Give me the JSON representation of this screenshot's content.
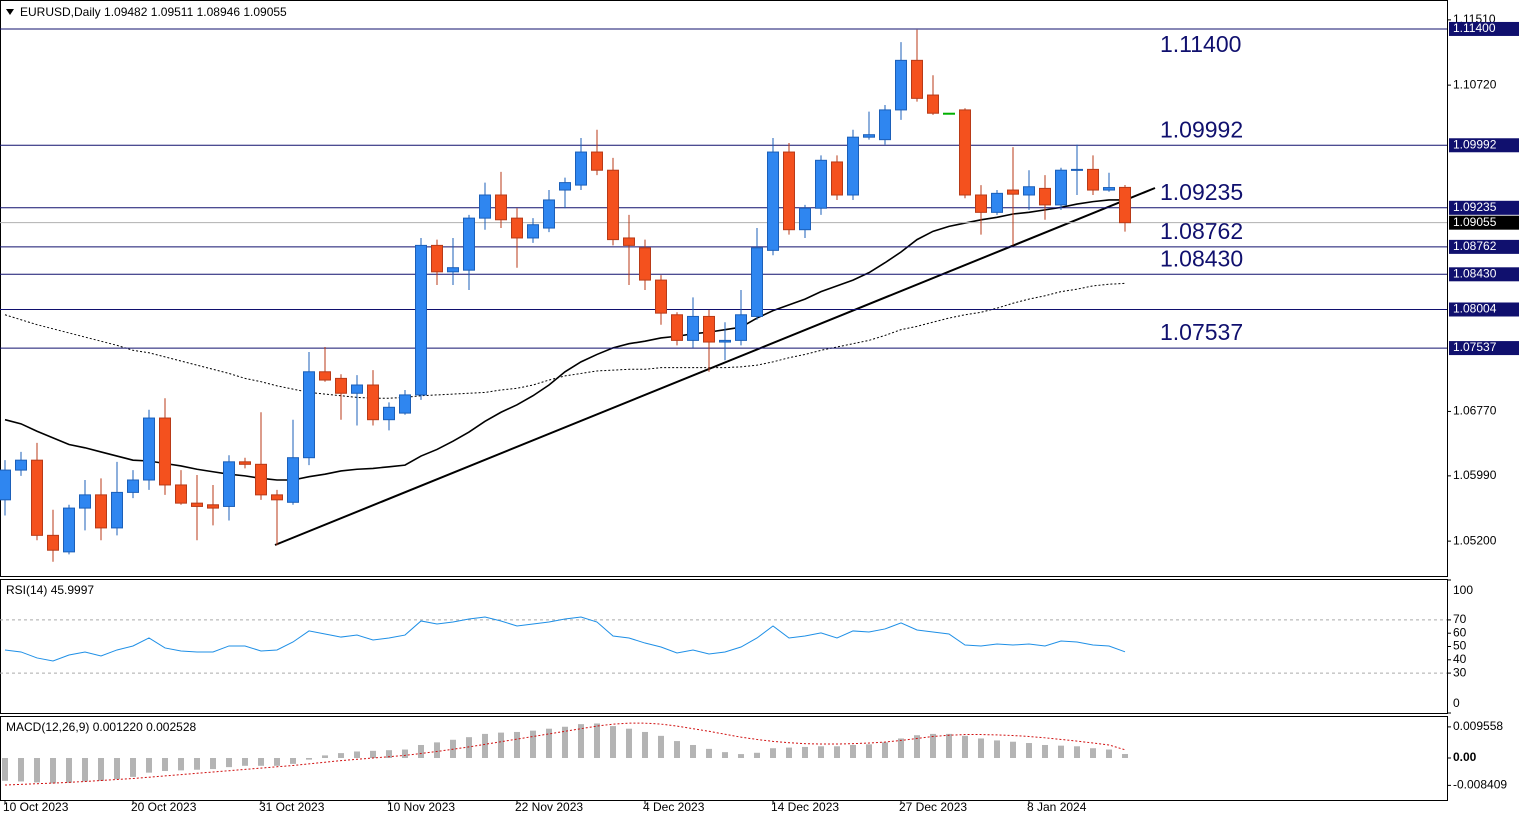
{
  "chart_data": [
    {
      "type": "candlestick",
      "title": "EURUSD,Daily",
      "categories": [
        "10 Oct 2023",
        null,
        null,
        null,
        null,
        null,
        null,
        null,
        "20 Oct 2023",
        null,
        null,
        null,
        null,
        null,
        null,
        null,
        "31 Oct 2023",
        null,
        null,
        null,
        null,
        null,
        null,
        null,
        "10 Nov 2023",
        null,
        null,
        null,
        null,
        null,
        null,
        null,
        "22 Nov 2023",
        null,
        null,
        null,
        null,
        null,
        null,
        null,
        "4 Dec 2023",
        null,
        null,
        null,
        null,
        null,
        null,
        null,
        "14 Dec 2023",
        null,
        null,
        null,
        null,
        null,
        null,
        null,
        "27 Dec 2023",
        null,
        null,
        null,
        null,
        null,
        null,
        null,
        "8 Jan 2024",
        null,
        null,
        null,
        null,
        null,
        null
      ],
      "open": [
        1.057,
        1.0606,
        1.0618,
        1.0527,
        1.0507,
        1.056,
        1.0576,
        1.0536,
        1.0579,
        1.0594,
        1.0669,
        1.0588,
        1.0566,
        1.0564,
        1.0562,
        1.0616,
        1.0613,
        1.0576,
        1.0567,
        1.0621,
        1.0725,
        1.0717,
        1.0699,
        1.0709,
        1.0667,
        1.0675,
        1.0697,
        1.0878,
        1.0846,
        1.0848,
        1.0911,
        1.0939,
        1.0911,
        1.0887,
        1.0899,
        1.0945,
        1.0951,
        1.0991,
        1.0969,
        1.0887,
        1.0875,
        1.0836,
        1.0794,
        1.0763,
        1.0792,
        1.0761,
        1.0763,
        1.0792,
        1.0872,
        1.0991,
        1.0897,
        1.0923,
        1.0979,
        1.0939,
        1.1009,
        1.1006,
        1.1042,
        1.1102,
        1.106,
        1.1038,
        1.1042,
        1.0939,
        1.0918,
        1.0945,
        1.0939,
        1.0947,
        1.0927,
        1.0969,
        1.097,
        1.0945,
        1.09482
      ],
      "high": [
        1.0618,
        1.0628,
        1.0639,
        1.0558,
        1.0564,
        1.0594,
        1.0596,
        1.0616,
        1.0606,
        1.0679,
        1.0693,
        1.0606,
        1.06,
        1.0588,
        1.0624,
        1.0621,
        1.0676,
        1.0582,
        1.0667,
        1.0749,
        1.0755,
        1.0722,
        1.0721,
        1.0727,
        1.0688,
        1.0703,
        1.0887,
        1.0885,
        1.0887,
        1.0915,
        1.0954,
        1.0967,
        1.0923,
        1.0911,
        1.0945,
        1.096,
        1.1008,
        1.1018,
        1.0984,
        1.0915,
        1.0885,
        1.0842,
        1.0797,
        1.0815,
        1.08,
        1.0785,
        1.0824,
        1.0899,
        1.1008,
        1.1002,
        1.0927,
        1.0987,
        1.0987,
        1.1018,
        1.104,
        1.1048,
        1.1124,
        1.1139,
        1.1084,
        1.1038,
        1.1044,
        1.0951,
        1.0945,
        1.0997,
        1.0969,
        1.0963,
        1.0972,
        1.1,
        1.0987,
        1.0966,
        1.09511
      ],
      "low": [
        1.0551,
        1.0599,
        1.0521,
        1.0495,
        1.0504,
        1.0533,
        1.0521,
        1.0527,
        1.0572,
        1.0582,
        1.0576,
        1.0564,
        1.0521,
        1.0539,
        1.0545,
        1.0608,
        1.057,
        1.0515,
        1.0564,
        1.0612,
        1.0713,
        1.0667,
        1.066,
        1.066,
        1.0654,
        1.0673,
        1.0691,
        1.083,
        1.083,
        1.0824,
        1.0897,
        1.0899,
        1.0851,
        1.0881,
        1.0894,
        1.0923,
        1.0945,
        1.0963,
        1.0878,
        1.083,
        1.0824,
        1.0782,
        1.0757,
        1.0754,
        1.0725,
        1.0739,
        1.0757,
        1.0788,
        1.0866,
        1.0891,
        1.0887,
        1.0915,
        1.0933,
        1.0933,
        1.1006,
        1.1,
        1.103,
        1.1052,
        1.1036,
        1.1038,
        1.0935,
        1.0891,
        1.0915,
        1.0878,
        1.0921,
        1.0909,
        1.0921,
        1.0939,
        1.0939,
        1.0943,
        1.08946
      ],
      "close": [
        1.0606,
        1.0618,
        1.0527,
        1.0509,
        1.056,
        1.0576,
        1.0536,
        1.0579,
        1.0594,
        1.0669,
        1.0588,
        1.0566,
        1.0562,
        1.056,
        1.0616,
        1.0613,
        1.0576,
        1.057,
        1.0621,
        1.0725,
        1.0715,
        1.0699,
        1.0709,
        1.0667,
        1.0682,
        1.0697,
        1.0878,
        1.0846,
        1.0851,
        1.0911,
        1.0939,
        1.0909,
        1.0887,
        1.0903,
        1.0933,
        1.0954,
        1.0991,
        1.0969,
        1.0885,
        1.0878,
        1.0836,
        1.0796,
        1.0763,
        1.0792,
        1.0761,
        1.0763,
        1.0794,
        1.0875,
        1.0991,
        1.0897,
        1.0923,
        1.0981,
        1.0939,
        1.1009,
        1.1012,
        1.1042,
        1.1102,
        1.1056,
        1.1038,
        1.1038,
        1.0939,
        1.0918,
        1.0941,
        1.094,
        1.0949,
        1.0927,
        1.0969,
        1.097,
        1.0945,
        1.0948,
        1.09055
      ],
      "colors": {
        "up": "#2f86f0",
        "up_edge": "#1b5fb8",
        "down": "#f4511e",
        "down_edge": "#b83a17",
        "doji": "#00b000"
      },
      "lines": [
        {
          "color": "#000000",
          "dashed": false,
          "values": [
            1.0667,
            1.0662,
            1.0653,
            1.0645,
            1.0637,
            1.0633,
            1.0628,
            1.0623,
            1.0618,
            1.0617,
            1.0614,
            1.0611,
            1.0607,
            1.0604,
            1.0601,
            1.0599,
            1.0596,
            1.0594,
            1.0594,
            1.0598,
            1.0601,
            1.0605,
            1.0607,
            1.0608,
            1.061,
            1.0612,
            1.0623,
            1.0631,
            1.0641,
            1.0652,
            1.0665,
            1.0676,
            1.0685,
            1.0696,
            1.0709,
            1.0725,
            1.0737,
            1.0746,
            1.0754,
            1.0759,
            1.0762,
            1.0766,
            1.0768,
            1.0771,
            1.0773,
            1.0776,
            1.0779,
            1.079,
            1.0799,
            1.0806,
            1.0813,
            1.0822,
            1.0829,
            1.0836,
            1.0845,
            1.0857,
            1.087,
            1.0885,
            1.0895,
            1.0901,
            1.0905,
            1.0909,
            1.0912,
            1.0916,
            1.0918,
            1.0921,
            1.0924,
            1.0928,
            1.0931,
            1.0933,
            1.0933
          ]
        },
        {
          "color": "#000000",
          "dashed": true,
          "values": [
            1.0794,
            1.0788,
            1.0782,
            1.0777,
            1.0772,
            1.0767,
            1.0762,
            1.0757,
            1.0751,
            1.0748,
            1.0743,
            1.0738,
            1.0733,
            1.0728,
            1.0723,
            1.0717,
            1.0713,
            1.0708,
            1.0704,
            1.07,
            1.0698,
            1.0696,
            1.0694,
            1.0693,
            1.0693,
            1.0694,
            1.0696,
            1.0697,
            1.0698,
            1.0699,
            1.07,
            1.0703,
            1.0705,
            1.0709,
            1.0715,
            1.072,
            1.0723,
            1.0726,
            1.0727,
            1.0728,
            1.0728,
            1.073,
            1.073,
            1.073,
            1.073,
            1.073,
            1.0731,
            1.0733,
            1.0737,
            1.0742,
            1.0746,
            1.0751,
            1.0755,
            1.0759,
            1.0763,
            1.0769,
            1.0776,
            1.078,
            1.0785,
            1.079,
            1.0794,
            1.0797,
            1.0802,
            1.0808,
            1.0813,
            1.0817,
            1.0822,
            1.0825,
            1.0829,
            1.0831,
            1.0832
          ]
        }
      ],
      "ylim": [
        1.0479,
        1.1169
      ],
      "yticks": [
        {
          "value": 1.1151,
          "label": "1.11510"
        },
        {
          "value": 1.1072,
          "label": "1.10720"
        },
        {
          "value": 1.0677,
          "label": "1.06770"
        },
        {
          "value": 1.0599,
          "label": "1.05990"
        },
        {
          "value": 1.052,
          "label": "1.05200"
        }
      ],
      "levels": [
        {
          "value": 1.114,
          "label": "1.11400",
          "annotated": true
        },
        {
          "value": 1.09992,
          "label": "1.09992",
          "annotated": true
        },
        {
          "value": 1.09235,
          "label": "1.09235",
          "annotated": true
        },
        {
          "value": 1.08762,
          "label": "1.08762",
          "annotated": true
        },
        {
          "value": 1.0843,
          "label": "1.08430",
          "annotated": true
        },
        {
          "value": 1.08004,
          "label": "1.08004",
          "annotated": false
        },
        {
          "value": 1.07537,
          "label": "1.07537",
          "annotated": true
        }
      ],
      "level_color": "#10106e"
    },
    {
      "type": "line",
      "title": "RSI(14)",
      "color": "#1e8fe6",
      "values": [
        47.4,
        45.9,
        41.4,
        39.1,
        43.6,
        45.9,
        42.9,
        47.4,
        50.4,
        56.4,
        48.9,
        46.6,
        45.9,
        45.9,
        50.4,
        50.4,
        46.6,
        47.4,
        53.4,
        61.7,
        59.4,
        57.1,
        58.6,
        54.9,
        56.4,
        58.6,
        69.2,
        66.9,
        68.4,
        70.7,
        72.2,
        69.2,
        65.4,
        66.9,
        68.4,
        70.7,
        72.2,
        68.4,
        57.9,
        56.4,
        52.6,
        49.6,
        45.1,
        47.4,
        44.4,
        45.9,
        49.6,
        56.4,
        65.4,
        56.4,
        57.9,
        60.2,
        56.4,
        61.7,
        60.9,
        63.2,
        67.7,
        62.4,
        60.9,
        59.4,
        51.1,
        50.4,
        51.9,
        51.1,
        51.9,
        50.4,
        54.1,
        53.4,
        51.1,
        50.4,
        45.9997
      ],
      "ylim": [
        0,
        100
      ],
      "yticks": [
        100,
        70,
        60,
        50,
        40,
        30,
        0
      ],
      "levels": [
        70,
        30
      ]
    },
    {
      "type": "macd",
      "title": "MACD(12,26,9)",
      "bar_color": "#b4b4b4",
      "signal_color": "#d01010",
      "histogram": [
        -0.007,
        -0.0072,
        -0.0075,
        -0.0078,
        -0.0076,
        -0.0072,
        -0.007,
        -0.0065,
        -0.0058,
        -0.0045,
        -0.004,
        -0.0038,
        -0.0036,
        -0.0034,
        -0.0028,
        -0.0024,
        -0.0024,
        -0.0024,
        -0.0018,
        -0.0005,
        0.0008,
        0.0015,
        0.002,
        0.0022,
        0.0024,
        0.0026,
        0.004,
        0.0048,
        0.0056,
        0.0064,
        0.0074,
        0.0078,
        0.008,
        0.0084,
        0.009,
        0.0096,
        0.0104,
        0.0106,
        0.0098,
        0.009,
        0.008,
        0.0068,
        0.0052,
        0.004,
        0.0028,
        0.0018,
        0.0012,
        0.0016,
        0.003,
        0.0032,
        0.0034,
        0.0036,
        0.0036,
        0.004,
        0.0042,
        0.0048,
        0.006,
        0.007,
        0.0074,
        0.0074,
        0.0068,
        0.006,
        0.0054,
        0.005,
        0.0046,
        0.004,
        0.0038,
        0.0036,
        0.003,
        0.0026,
        0.00122
      ],
      "signal": [
        -0.0083,
        -0.0081,
        -0.0079,
        -0.0077,
        -0.0075,
        -0.0072,
        -0.0069,
        -0.0066,
        -0.0063,
        -0.0059,
        -0.0055,
        -0.0051,
        -0.0047,
        -0.0043,
        -0.0039,
        -0.0035,
        -0.0031,
        -0.0027,
        -0.0023,
        -0.0018,
        -0.0013,
        -0.0008,
        -0.0004,
        0.0,
        0.0004,
        0.0008,
        0.0014,
        0.002,
        0.0027,
        0.0034,
        0.0042,
        0.005,
        0.0058,
        0.0066,
        0.0074,
        0.0082,
        0.009,
        0.0098,
        0.0104,
        0.0107,
        0.0107,
        0.0104,
        0.0098,
        0.009,
        0.0082,
        0.0073,
        0.0064,
        0.0057,
        0.0051,
        0.0047,
        0.0044,
        0.0043,
        0.0043,
        0.0044,
        0.0046,
        0.0049,
        0.0054,
        0.006,
        0.0066,
        0.007,
        0.0072,
        0.0072,
        0.0071,
        0.0069,
        0.0066,
        0.0062,
        0.0057,
        0.0052,
        0.0046,
        0.004,
        0.002528
      ],
      "value_labels": [
        "0.001220",
        "0.002528"
      ],
      "ylim": [
        -0.0129,
        0.0129
      ],
      "yticks": [
        0.009558,
        {
          "value": 0,
          "label": "0.00"
        },
        -0.008409
      ]
    }
  ]
}
